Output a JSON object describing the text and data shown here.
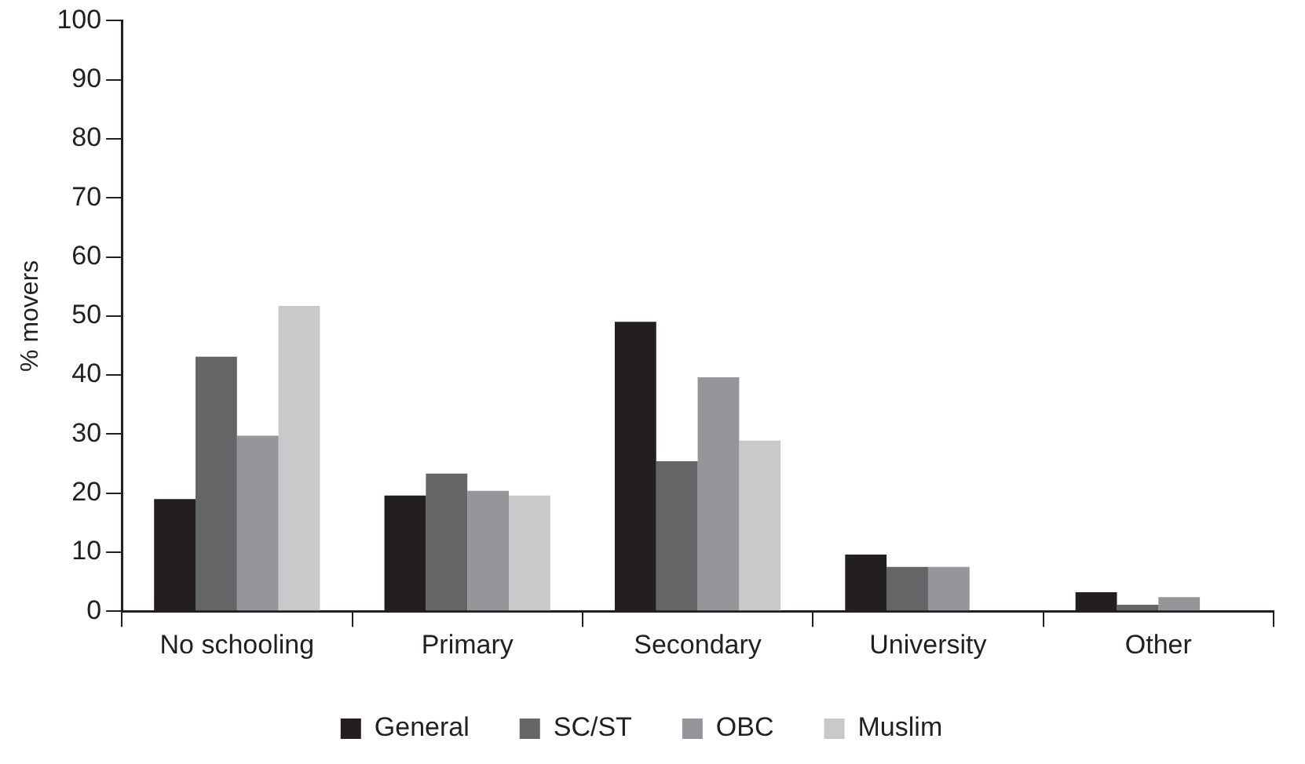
{
  "chart_data": {
    "type": "bar",
    "ylabel": "% movers",
    "categories": [
      "No schooling",
      "Primary",
      "Secondary",
      "University",
      "Other"
    ],
    "series": [
      {
        "name": "General",
        "color": "#231f20",
        "values": [
          19.0,
          19.6,
          49.0,
          9.6,
          3.2
        ]
      },
      {
        "name": "SC/ST",
        "color": "#646567",
        "values": [
          43.1,
          23.3,
          25.4,
          7.5,
          1.1
        ]
      },
      {
        "name": "OBC",
        "color": "#959699",
        "values": [
          29.7,
          20.4,
          39.6,
          7.5,
          2.4
        ]
      },
      {
        "name": "Muslim",
        "color": "#c8c9cb",
        "values": [
          51.7,
          19.6,
          28.9,
          0,
          0
        ]
      }
    ],
    "ylim": [
      0,
      100
    ],
    "yticks": [
      0,
      10,
      20,
      30,
      40,
      50,
      60,
      70,
      80,
      90,
      100
    ],
    "grid": false,
    "legend": "bottom"
  }
}
